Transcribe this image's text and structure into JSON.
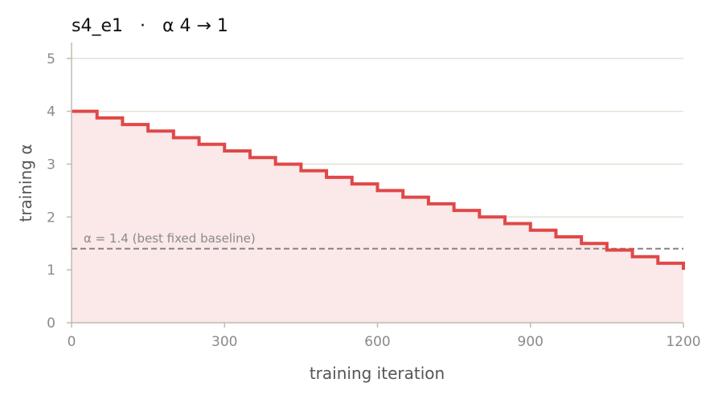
{
  "chart_data": {
    "type": "line",
    "title": "s4_e1   ·   α 4 → 1",
    "xlabel": "training iteration",
    "ylabel": "training α",
    "xlim": [
      0,
      1200
    ],
    "ylim": [
      0,
      5.3
    ],
    "x_ticks": [
      "0",
      "300",
      "600",
      "900",
      "1200"
    ],
    "y_ticks": [
      "0",
      "1",
      "2",
      "3",
      "4",
      "5"
    ],
    "grid": "horizontal",
    "series": [
      {
        "step": "post",
        "fill": true,
        "x": [
          0,
          50,
          100,
          150,
          200,
          250,
          300,
          350,
          400,
          450,
          500,
          550,
          600,
          650,
          700,
          750,
          800,
          850,
          900,
          950,
          1000,
          1050,
          1100,
          1150,
          1200
        ],
        "values": [
          4.0,
          3.875,
          3.75,
          3.625,
          3.5,
          3.375,
          3.25,
          3.125,
          3.0,
          2.875,
          2.75,
          2.625,
          2.5,
          2.375,
          2.25,
          2.125,
          2.0,
          1.875,
          1.75,
          1.625,
          1.5,
          1.375,
          1.25,
          1.125,
          1.0
        ]
      }
    ],
    "reference_line": {
      "y": 1.4,
      "label": "α = 1.4 (best fixed baseline)",
      "style": "dashed"
    },
    "colors": {
      "series": "#e04848",
      "fill": "#fbe8e8",
      "reference": "#8c8080",
      "grid": "#e2e2d6",
      "axis": "#bdbdb0"
    }
  }
}
